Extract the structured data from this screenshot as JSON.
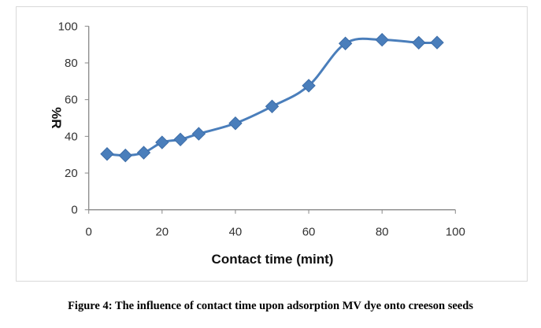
{
  "chart_data": {
    "type": "line",
    "title": "",
    "xlabel": "Contact time (mint)",
    "ylabel": "%R",
    "xlim": [
      0,
      100
    ],
    "ylim": [
      0,
      100
    ],
    "xticks": [
      0,
      20,
      40,
      60,
      80,
      100
    ],
    "yticks": [
      0,
      20,
      40,
      60,
      80,
      100
    ],
    "grid": false,
    "legend": "none",
    "series": [
      {
        "name": "%R",
        "color": "#4a7ebb",
        "marker": "diamond",
        "smooth": true,
        "x": [
          5,
          10,
          15,
          20,
          25,
          30,
          40,
          50,
          60,
          70,
          80,
          90,
          95
        ],
        "y": [
          30.4,
          29.6,
          31.1,
          36.7,
          38.3,
          41.4,
          47.1,
          56.3,
          67.6,
          90.6,
          92.6,
          91.0,
          91.1
        ]
      }
    ]
  },
  "caption": "Figure 4: The influence of contact time upon adsorption MV dye onto creeson seeds"
}
